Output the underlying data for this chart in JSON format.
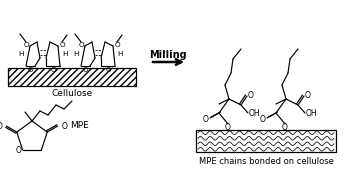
{
  "bg_color": "#ffffff",
  "milling_text": "Milling",
  "cellulose_label": "Cellulose",
  "mpe_label": "MPE",
  "product_label": "MPE chains bonded on cellulose"
}
